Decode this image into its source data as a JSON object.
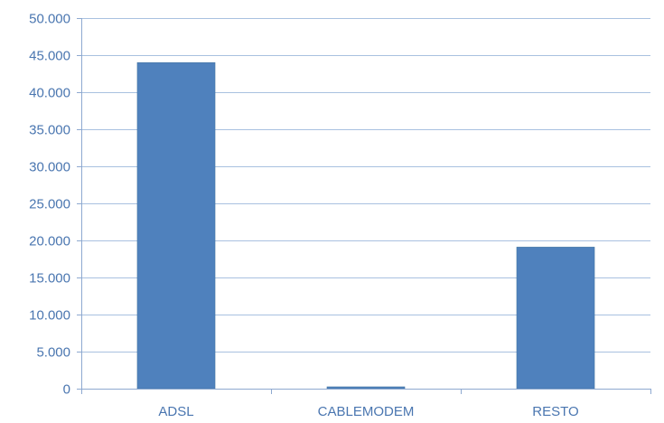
{
  "chart_data": {
    "type": "bar",
    "categories": [
      "ADSL",
      "CABLEMODEM",
      "RESTO"
    ],
    "values": [
      44000,
      250,
      19100
    ],
    "title": "",
    "xlabel": "",
    "ylabel": "",
    "ylim": [
      0,
      50000
    ],
    "yticks": [
      0,
      5000,
      10000,
      15000,
      20000,
      25000,
      30000,
      35000,
      40000,
      45000,
      50000
    ],
    "ytick_labels": [
      "0",
      "5.000",
      "10.000",
      "15.000",
      "20.000",
      "25.000",
      "30.000",
      "35.000",
      "40.000",
      "45.000",
      "50.000"
    ],
    "grid": true,
    "legend": "none",
    "colors": {
      "bar": "#4f81bd",
      "grid": "#a9c1e0",
      "tick_text": "#4a76b0"
    }
  }
}
